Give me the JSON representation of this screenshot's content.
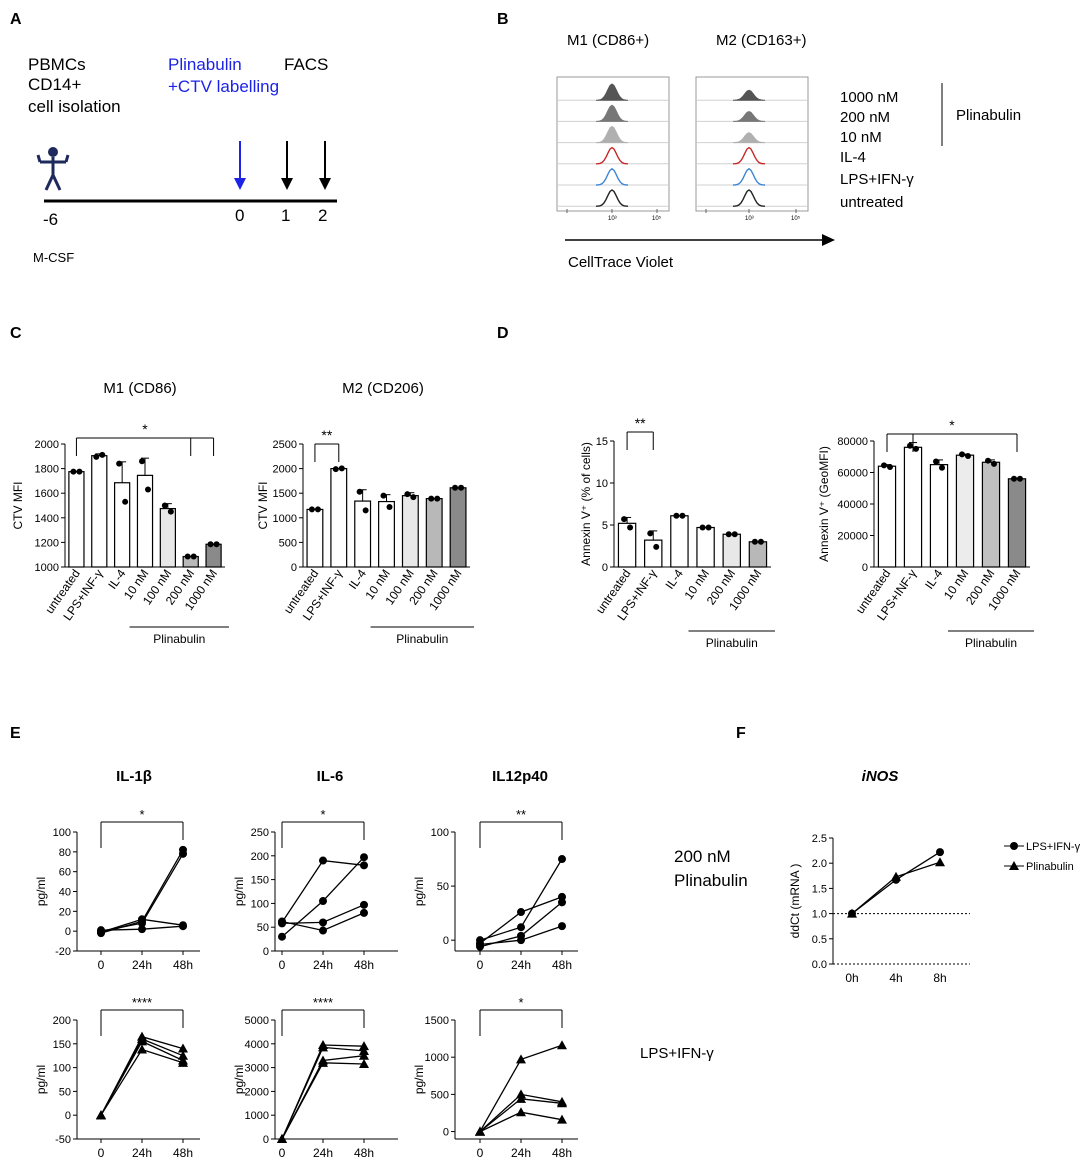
{
  "panels": {
    "A": {
      "label": "A",
      "cells": [
        "PBMCs",
        "CD14+",
        "cell isolation"
      ],
      "treatment": [
        "Plinabulin",
        "+CTV labelling"
      ],
      "readout": "FACS",
      "days": [
        "-6",
        "0",
        "1",
        "2"
      ],
      "factor": "M-CSF",
      "accent": "#1c23e6"
    },
    "B": {
      "label": "B",
      "cols": [
        "M1 (CD86+)",
        "M2 (CD163+)"
      ],
      "rows": [
        "1000 nM",
        "200 nM",
        "10 nM",
        "IL-4",
        "LPS+IFN-γ",
        "untreated"
      ],
      "bracket": "Plinabulin",
      "axis": "CellTrace Violet",
      "tick_labels": [
        "10³",
        "10⁵"
      ],
      "trace_colors": [
        "#555555",
        "#777777",
        "#b0b0b0",
        "#c62828",
        "#3d85d6",
        "#222222"
      ]
    },
    "C": {
      "label": "C"
    },
    "D": {
      "label": "D"
    },
    "E": {
      "label": "E",
      "cols": [
        "IL-1β",
        "IL-6",
        "IL12p40"
      ],
      "rows": [
        "200 nM\nPlinabulin",
        "LPS+IFN-γ"
      ],
      "row1_a": "200 nM",
      "row1_b": "Plinabulin",
      "row2": "LPS+IFN-γ"
    },
    "F": {
      "label": "F",
      "title": "iNOS"
    }
  },
  "chart_data": [
    {
      "id": "C1",
      "type": "bar",
      "title": "M1 (CD86)",
      "ylabel": "CTV MFI",
      "categories": [
        "untreated",
        "LPS+INF-γ",
        "IL-4",
        "10 nM",
        "100 nM",
        "200 nM",
        "1000 nM"
      ],
      "values": [
        1775,
        1905,
        1685,
        1745,
        1475,
        1085,
        1185
      ],
      "errors": [
        0,
        15,
        170,
        140,
        40,
        0,
        0
      ],
      "points": [
        [
          1775,
          1775
        ],
        [
          1895,
          1912
        ],
        [
          1840,
          1530
        ],
        [
          1860,
          1630
        ],
        [
          1500,
          1450
        ],
        [
          1085,
          1085
        ],
        [
          1185,
          1185
        ]
      ],
      "ylim": [
        1000,
        2000
      ],
      "yticks": [
        1000,
        1200,
        1400,
        1600,
        1800,
        2000
      ],
      "fills": [
        "#ffffff",
        "#ffffff",
        "#ffffff",
        "#ffffff",
        "#e8e8e8",
        "#b8b8b8",
        "#8a8a8a"
      ],
      "group_label": "Plinabulin",
      "group_span": [
        3,
        6
      ],
      "significance": [
        {
          "from": 0,
          "to": 6,
          "label": "*",
          "extra_drop": 5
        }
      ]
    },
    {
      "id": "C2",
      "type": "bar",
      "title": "M2 (CD206)",
      "ylabel": "CTV MFI",
      "categories": [
        "untreated",
        "LPS+INF-γ",
        "IL-4",
        "10 nM",
        "100 nM",
        "200 nM",
        "1000 nM"
      ],
      "values": [
        1170,
        2000,
        1340,
        1330,
        1450,
        1390,
        1610
      ],
      "errors": [
        0,
        0,
        230,
        140,
        60,
        0,
        0
      ],
      "points": [
        [
          1170,
          1170
        ],
        [
          1990,
          2005
        ],
        [
          1530,
          1150
        ],
        [
          1450,
          1220
        ],
        [
          1480,
          1420
        ],
        [
          1390,
          1390
        ],
        [
          1610,
          1610
        ]
      ],
      "ylim": [
        0,
        2500
      ],
      "yticks": [
        0,
        500,
        1000,
        1500,
        2000,
        2500
      ],
      "fills": [
        "#ffffff",
        "#ffffff",
        "#ffffff",
        "#ffffff",
        "#e8e8e8",
        "#b8b8b8",
        "#8a8a8a"
      ],
      "group_label": "Plinabulin",
      "group_span": [
        3,
        6
      ],
      "significance": [
        {
          "from": 0,
          "to": 1,
          "label": "**"
        }
      ]
    },
    {
      "id": "D1",
      "type": "bar",
      "ylabel": "Annexin V⁺ (% of cells)",
      "categories": [
        "untreated",
        "LPS+INF-γ",
        "IL-4",
        "10 nM",
        "200 nM",
        "1000 nM"
      ],
      "values": [
        5.2,
        3.2,
        6.1,
        4.7,
        3.9,
        3.0
      ],
      "errors": [
        0.7,
        1.1,
        0,
        0,
        0,
        0
      ],
      "points": [
        [
          5.7,
          4.7
        ],
        [
          4.0,
          2.4
        ],
        [
          6.1,
          6.1
        ],
        [
          4.7,
          4.7
        ],
        [
          3.9,
          3.9
        ],
        [
          3.0,
          3.0
        ]
      ],
      "ylim": [
        0,
        15
      ],
      "yticks": [
        0,
        5,
        10,
        15
      ],
      "fills": [
        "#ffffff",
        "#ffffff",
        "#ffffff",
        "#ffffff",
        "#e8e8e8",
        "#b8b8b8"
      ],
      "group_label": "Plinabulin",
      "group_span": [
        3,
        5
      ],
      "significance": [
        {
          "from": 0,
          "to": 1,
          "label": "**"
        }
      ]
    },
    {
      "id": "D2",
      "type": "bar",
      "ylabel": "Annexin V⁺ (GeoMFI)",
      "categories": [
        "untreated",
        "LPS+INF-γ",
        "IL-4",
        "10 nM",
        "200 nM",
        "1000 nM"
      ],
      "values": [
        64000,
        76000,
        65000,
        71000,
        66500,
        56000
      ],
      "errors": [
        1000,
        3000,
        3000,
        700,
        1500,
        500
      ],
      "points": [
        [
          64500,
          63500
        ],
        [
          77000,
          75000
        ],
        [
          67000,
          63000
        ],
        [
          71500,
          70500
        ],
        [
          67500,
          65500
        ],
        [
          56000,
          56000
        ]
      ],
      "ylim": [
        0,
        80000
      ],
      "yticks": [
        0,
        20000,
        40000,
        60000,
        80000
      ],
      "fills": [
        "#ffffff",
        "#ffffff",
        "#ffffff",
        "#ececec",
        "#c0c0c0",
        "#8a8a8a"
      ],
      "group_label": "Plinabulin",
      "group_span": [
        3,
        5
      ],
      "significance": [
        {
          "from": 0,
          "to": 5,
          "label": "*",
          "extra_drop": 1
        }
      ]
    },
    {
      "id": "E1",
      "type": "line",
      "marker": "circle",
      "ylabel": "pg/ml",
      "x": [
        "0",
        "24h",
        "48h"
      ],
      "ylim": [
        -20,
        100
      ],
      "yticks": [
        -20,
        0,
        20,
        40,
        60,
        80,
        100
      ],
      "series": [
        [
          -2,
          10,
          82
        ],
        [
          0,
          8,
          78
        ],
        [
          -1,
          12,
          6
        ],
        [
          1,
          2,
          5
        ]
      ],
      "significance": {
        "label": "*"
      }
    },
    {
      "id": "E2",
      "type": "line",
      "marker": "circle",
      "ylabel": "pg/ml",
      "x": [
        "0",
        "24h",
        "48h"
      ],
      "ylim": [
        0,
        250
      ],
      "yticks": [
        0,
        50,
        100,
        150,
        200,
        250
      ],
      "series": [
        [
          60,
          190,
          180
        ],
        [
          30,
          105,
          197
        ],
        [
          58,
          60,
          97
        ],
        [
          62,
          43,
          80
        ]
      ],
      "significance": {
        "label": "*"
      }
    },
    {
      "id": "E3",
      "type": "line",
      "marker": "circle",
      "ylabel": "pg/ml",
      "x": [
        "0",
        "24h",
        "48h"
      ],
      "ylim": [
        -10,
        100
      ],
      "yticks": [
        0,
        50,
        100
      ],
      "series": [
        [
          -3,
          26,
          40
        ],
        [
          0,
          12,
          75
        ],
        [
          -6,
          4,
          35
        ],
        [
          -4,
          0,
          13
        ]
      ],
      "significance": {
        "label": "**"
      }
    },
    {
      "id": "E4",
      "type": "line",
      "marker": "triangle",
      "ylabel": "pg/ml",
      "x": [
        "0",
        "24h",
        "48h"
      ],
      "ylim": [
        -50,
        200
      ],
      "yticks": [
        -50,
        0,
        50,
        100,
        150,
        200
      ],
      "series": [
        [
          0,
          165,
          140
        ],
        [
          0,
          160,
          125
        ],
        [
          0,
          155,
          115
        ],
        [
          0,
          138,
          110
        ]
      ],
      "significance": {
        "label": "****"
      }
    },
    {
      "id": "E5",
      "type": "line",
      "marker": "triangle",
      "ylabel": "pg/ml",
      "x": [
        "0",
        "24h",
        "48h"
      ],
      "ylim": [
        0,
        5000
      ],
      "yticks": [
        0,
        1000,
        2000,
        3000,
        4000,
        5000
      ],
      "series": [
        [
          0,
          3950,
          3900
        ],
        [
          0,
          3850,
          3700
        ],
        [
          0,
          3300,
          3500
        ],
        [
          0,
          3200,
          3150
        ]
      ],
      "significance": {
        "label": "****"
      }
    },
    {
      "id": "E6",
      "type": "line",
      "marker": "triangle",
      "ylabel": "pg/ml",
      "x": [
        "0",
        "24h",
        "48h"
      ],
      "ylim": [
        -100,
        1500
      ],
      "yticks": [
        0,
        500,
        1000,
        1500
      ],
      "series": [
        [
          0,
          970,
          1160
        ],
        [
          0,
          500,
          400
        ],
        [
          0,
          440,
          380
        ],
        [
          0,
          260,
          160
        ]
      ],
      "significance": {
        "label": "*"
      }
    },
    {
      "id": "F1",
      "type": "line",
      "title": "iNOS",
      "ylabel": "ddCt (mRNA )",
      "x": [
        "0h",
        "4h",
        "8h"
      ],
      "ylim": [
        0,
        2.5
      ],
      "yticks": [
        0.0,
        0.5,
        1.0,
        1.5,
        2.0,
        2.5
      ],
      "reference_line": 1.0,
      "series": [
        {
          "name": "LPS+IFN-γ",
          "marker": "circle",
          "values": [
            1.0,
            1.67,
            2.22
          ]
        },
        {
          "name": "Plinabulin",
          "marker": "triangle",
          "values": [
            1.0,
            1.73,
            2.02
          ]
        }
      ]
    }
  ]
}
